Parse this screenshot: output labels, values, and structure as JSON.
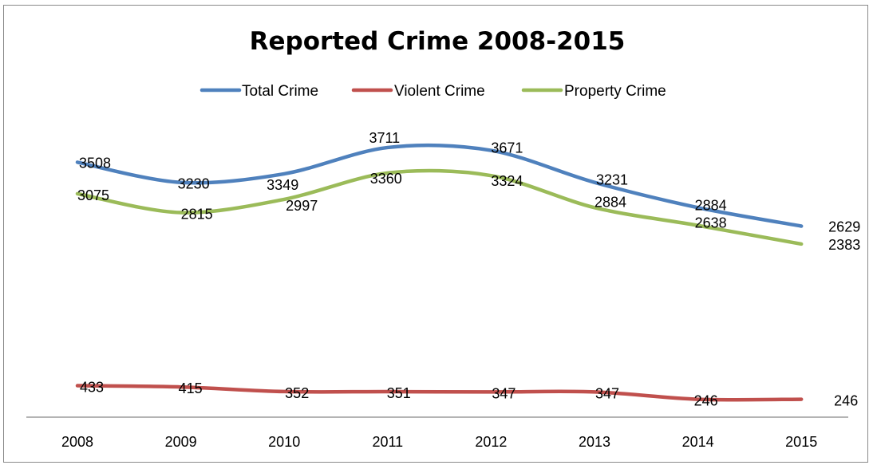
{
  "chart_data": {
    "type": "line",
    "title": "Reported Crime 2008-2015",
    "xlabel": "",
    "ylabel": "",
    "categories": [
      "2008",
      "2009",
      "2010",
      "2011",
      "2012",
      "2013",
      "2014",
      "2015"
    ],
    "ylim": [
      0,
      4000
    ],
    "grid": false,
    "legend_position": "top",
    "series": [
      {
        "name": "Total Crime",
        "color": "#4f81bd",
        "values": [
          3508,
          3230,
          3349,
          3711,
          3671,
          3231,
          2884,
          2629
        ]
      },
      {
        "name": "Violent Crime",
        "color": "#c0504d",
        "values": [
          433,
          415,
          352,
          351,
          347,
          347,
          246,
          246
        ]
      },
      {
        "name": "Property Crime",
        "color": "#9bbb59",
        "values": [
          3075,
          2815,
          2997,
          3360,
          3324,
          2884,
          2638,
          2383
        ]
      }
    ]
  }
}
